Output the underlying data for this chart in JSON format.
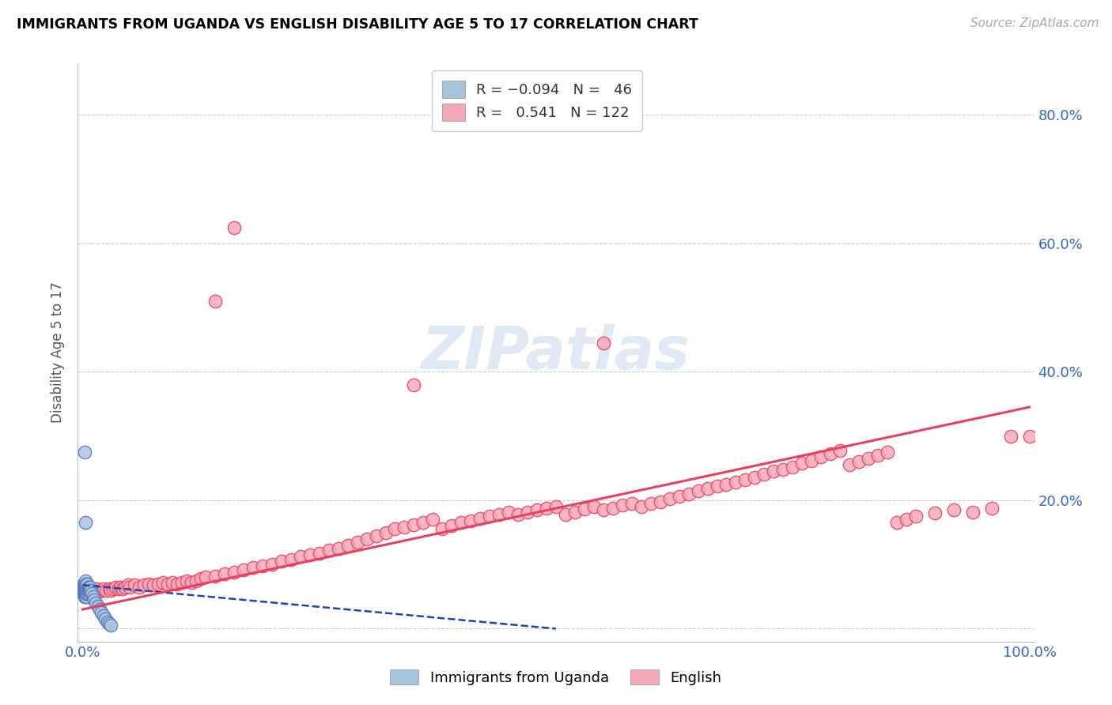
{
  "title": "IMMIGRANTS FROM UGANDA VS ENGLISH DISABILITY AGE 5 TO 17 CORRELATION CHART",
  "source": "Source: ZipAtlas.com",
  "ylabel": "Disability Age 5 to 17",
  "xlim": [
    -0.005,
    1.005
  ],
  "ylim": [
    -0.02,
    0.88
  ],
  "xtick_vals": [
    0.0,
    1.0
  ],
  "xticklabels": [
    "0.0%",
    "100.0%"
  ],
  "ytick_vals": [
    0.0,
    0.2,
    0.4,
    0.6,
    0.8
  ],
  "yticklabels": [
    "",
    "20.0%",
    "40.0%",
    "60.0%",
    "80.0%"
  ],
  "watermark": "ZIPatlas",
  "blue_color": "#aac4e0",
  "pink_color": "#f5aaba",
  "blue_edge": "#5577bb",
  "pink_edge": "#e84060",
  "blue_line_color": "#2244aa",
  "pink_line_color": "#e84060",
  "grid_color": "#cccccc",
  "blue_scatter_x": [
    0.001,
    0.001,
    0.001,
    0.001,
    0.002,
    0.002,
    0.002,
    0.002,
    0.002,
    0.003,
    0.003,
    0.003,
    0.003,
    0.003,
    0.003,
    0.004,
    0.004,
    0.004,
    0.004,
    0.004,
    0.005,
    0.005,
    0.005,
    0.005,
    0.006,
    0.006,
    0.006,
    0.007,
    0.007,
    0.008,
    0.008,
    0.009,
    0.01,
    0.011,
    0.012,
    0.014,
    0.016,
    0.018,
    0.02,
    0.022,
    0.024,
    0.026,
    0.028,
    0.03,
    0.002,
    0.003
  ],
  "blue_scatter_y": [
    0.055,
    0.06,
    0.065,
    0.07,
    0.05,
    0.055,
    0.06,
    0.065,
    0.07,
    0.05,
    0.055,
    0.06,
    0.065,
    0.07,
    0.075,
    0.05,
    0.055,
    0.06,
    0.065,
    0.07,
    0.055,
    0.06,
    0.065,
    0.07,
    0.055,
    0.06,
    0.065,
    0.06,
    0.065,
    0.06,
    0.065,
    0.06,
    0.055,
    0.05,
    0.045,
    0.04,
    0.035,
    0.03,
    0.025,
    0.02,
    0.015,
    0.01,
    0.008,
    0.005,
    0.275,
    0.165
  ],
  "pink_scatter_x": [
    0.003,
    0.005,
    0.007,
    0.01,
    0.012,
    0.015,
    0.018,
    0.02,
    0.022,
    0.025,
    0.028,
    0.03,
    0.032,
    0.035,
    0.038,
    0.04,
    0.042,
    0.045,
    0.048,
    0.05,
    0.055,
    0.06,
    0.065,
    0.07,
    0.075,
    0.08,
    0.085,
    0.09,
    0.095,
    0.1,
    0.105,
    0.11,
    0.115,
    0.12,
    0.125,
    0.13,
    0.14,
    0.15,
    0.16,
    0.17,
    0.18,
    0.19,
    0.2,
    0.21,
    0.22,
    0.23,
    0.24,
    0.25,
    0.26,
    0.27,
    0.28,
    0.29,
    0.3,
    0.31,
    0.32,
    0.33,
    0.34,
    0.35,
    0.36,
    0.37,
    0.38,
    0.39,
    0.4,
    0.41,
    0.42,
    0.43,
    0.44,
    0.45,
    0.46,
    0.47,
    0.48,
    0.49,
    0.5,
    0.51,
    0.52,
    0.53,
    0.54,
    0.55,
    0.56,
    0.57,
    0.58,
    0.59,
    0.6,
    0.61,
    0.62,
    0.63,
    0.64,
    0.65,
    0.66,
    0.67,
    0.68,
    0.69,
    0.7,
    0.71,
    0.72,
    0.73,
    0.74,
    0.75,
    0.76,
    0.77,
    0.78,
    0.79,
    0.8,
    0.81,
    0.82,
    0.83,
    0.84,
    0.85,
    0.86,
    0.87,
    0.88,
    0.9,
    0.92,
    0.94,
    0.96,
    0.98,
    1.0,
    0.14,
    0.16,
    0.35,
    0.55
  ],
  "pink_scatter_y": [
    0.055,
    0.058,
    0.06,
    0.058,
    0.06,
    0.062,
    0.058,
    0.06,
    0.062,
    0.06,
    0.062,
    0.06,
    0.062,
    0.065,
    0.062,
    0.065,
    0.062,
    0.065,
    0.068,
    0.065,
    0.068,
    0.065,
    0.068,
    0.07,
    0.068,
    0.07,
    0.072,
    0.07,
    0.072,
    0.07,
    0.072,
    0.075,
    0.072,
    0.075,
    0.078,
    0.08,
    0.082,
    0.085,
    0.088,
    0.092,
    0.095,
    0.098,
    0.1,
    0.105,
    0.108,
    0.112,
    0.115,
    0.118,
    0.122,
    0.125,
    0.13,
    0.135,
    0.14,
    0.145,
    0.15,
    0.155,
    0.158,
    0.162,
    0.165,
    0.17,
    0.155,
    0.16,
    0.165,
    0.168,
    0.172,
    0.175,
    0.178,
    0.182,
    0.178,
    0.182,
    0.185,
    0.188,
    0.19,
    0.178,
    0.182,
    0.186,
    0.19,
    0.185,
    0.188,
    0.192,
    0.195,
    0.19,
    0.195,
    0.198,
    0.202,
    0.206,
    0.21,
    0.215,
    0.218,
    0.222,
    0.225,
    0.228,
    0.232,
    0.236,
    0.24,
    0.245,
    0.248,
    0.252,
    0.258,
    0.262,
    0.268,
    0.272,
    0.278,
    0.255,
    0.26,
    0.265,
    0.27,
    0.275,
    0.165,
    0.17,
    0.175,
    0.18,
    0.185,
    0.182,
    0.188,
    0.3,
    0.3,
    0.51,
    0.625,
    0.38,
    0.445
  ],
  "blue_trend_x": [
    0.0,
    0.5
  ],
  "blue_trend_y": [
    0.068,
    0.0
  ],
  "pink_trend_x": [
    0.0,
    1.0
  ],
  "pink_trend_y": [
    0.03,
    0.345
  ]
}
